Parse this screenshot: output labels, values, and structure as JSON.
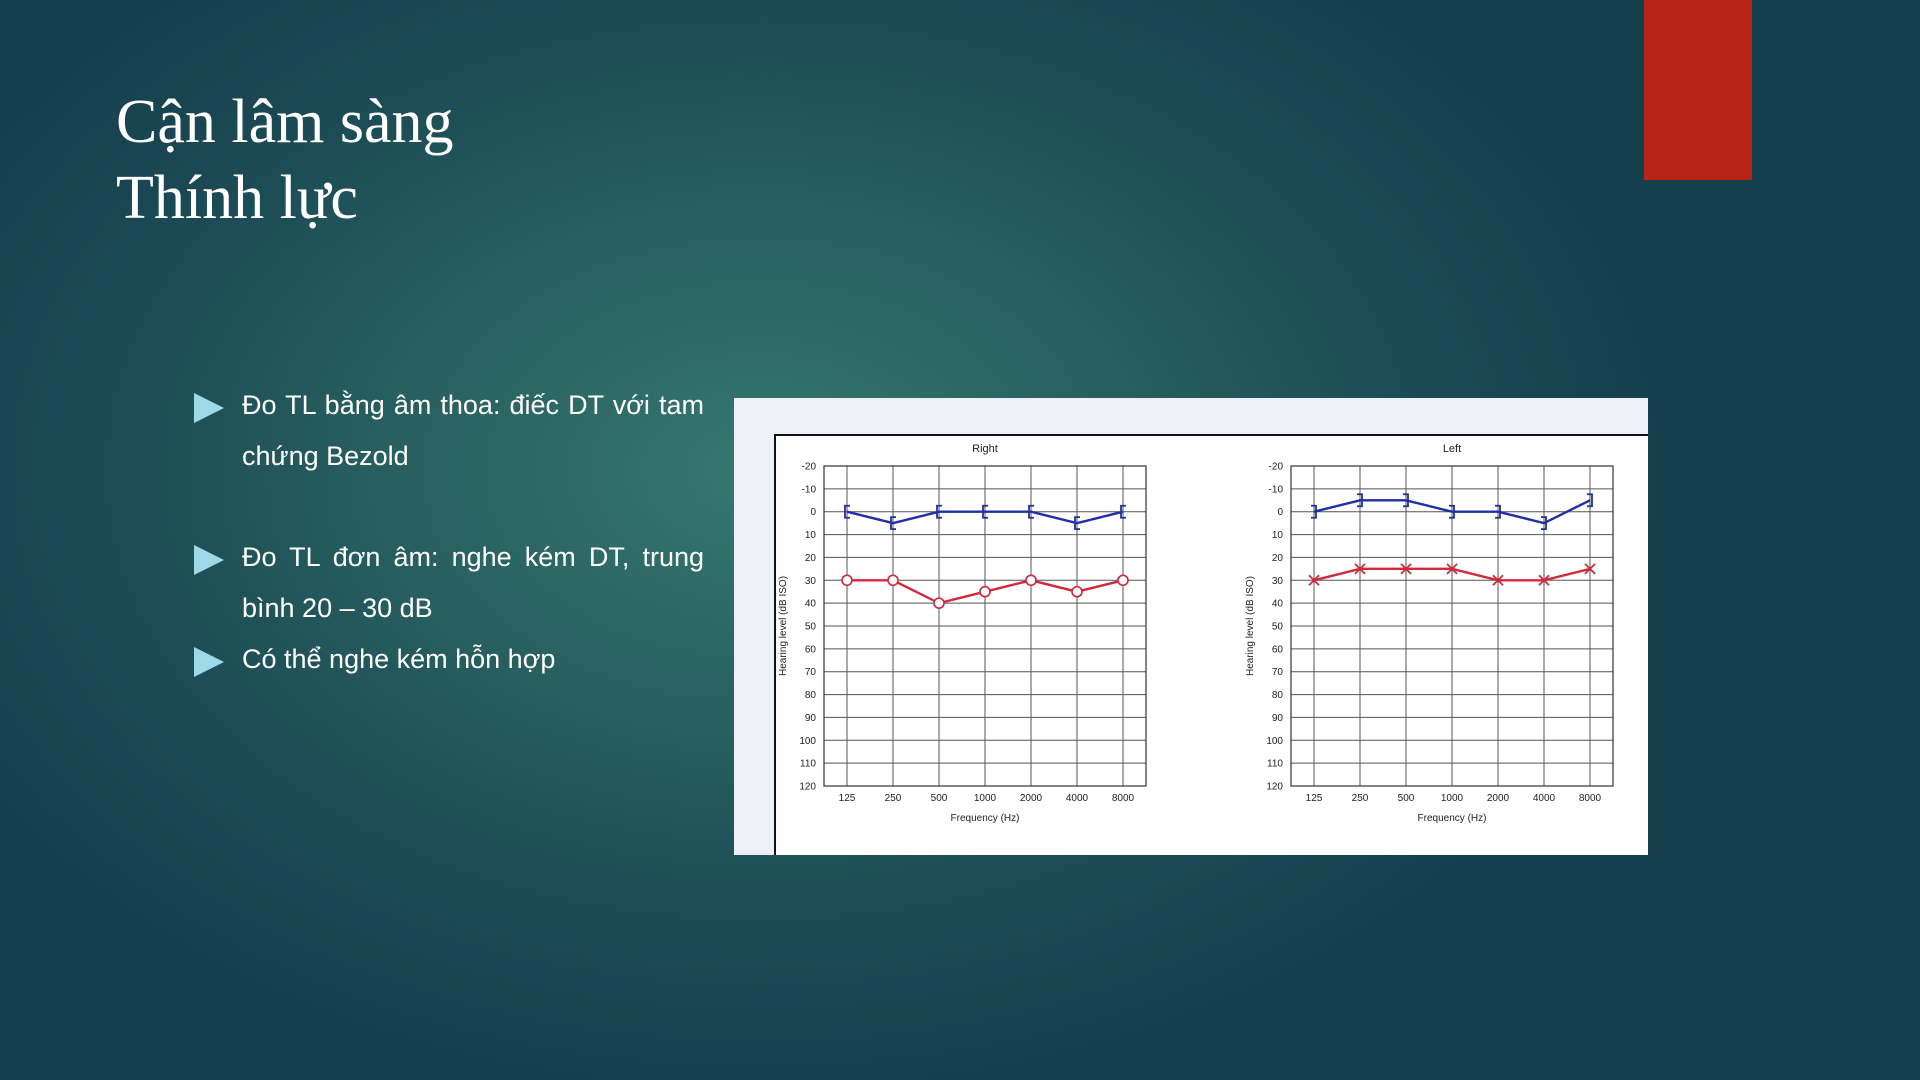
{
  "title": {
    "line1": "Cận lâm sàng",
    "line2": "Thính lực"
  },
  "bullets": [
    "Đo TL bằng âm thoa: điếc DT với tam chứng Bezold",
    "Đo TL đơn âm: nghe kém DT, trung bình 20 – 30 dB",
    "Có thể nghe kém hỗn hợp"
  ],
  "colors": {
    "accent_tab": "#b82414",
    "bullet_arrow": "#9fd8e6",
    "bone_line": "#1f2fa6",
    "air_line": "#d02a3c"
  },
  "chart_data": [
    {
      "type": "line",
      "title": "Right",
      "xlabel": "Frequency (Hz)",
      "ylabel": "Hearing level (dB ISO)",
      "categories": [
        "125",
        "250",
        "500",
        "1000",
        "2000",
        "4000",
        "8000"
      ],
      "yticks": [
        -20,
        -10,
        0,
        10,
        20,
        30,
        40,
        50,
        60,
        70,
        80,
        90,
        100,
        110,
        120
      ],
      "ylim": [
        -20,
        120
      ],
      "y_inverted": true,
      "grid": true,
      "series": [
        {
          "marker": "bracket-left",
          "color": "#1f2fa6",
          "values": [
            0,
            5,
            0,
            0,
            0,
            5,
            0
          ]
        },
        {
          "marker": "circle",
          "color": "#d02a3c",
          "values": [
            30,
            30,
            40,
            35,
            30,
            35,
            30
          ]
        }
      ]
    },
    {
      "type": "line",
      "title": "Left",
      "xlabel": "Frequency (Hz)",
      "ylabel": "Hearing level (dB ISO)",
      "categories": [
        "125",
        "250",
        "500",
        "1000",
        "2000",
        "4000",
        "8000"
      ],
      "yticks": [
        -20,
        -10,
        0,
        10,
        20,
        30,
        40,
        50,
        60,
        70,
        80,
        90,
        100,
        110,
        120
      ],
      "ylim": [
        -20,
        120
      ],
      "y_inverted": true,
      "grid": true,
      "series": [
        {
          "marker": "bracket-right",
          "color": "#1f2fa6",
          "values": [
            0,
            -5,
            -5,
            0,
            0,
            5,
            -5
          ]
        },
        {
          "marker": "cross",
          "color": "#d02a3c",
          "values": [
            30,
            25,
            25,
            25,
            30,
            30,
            25
          ]
        }
      ]
    }
  ]
}
